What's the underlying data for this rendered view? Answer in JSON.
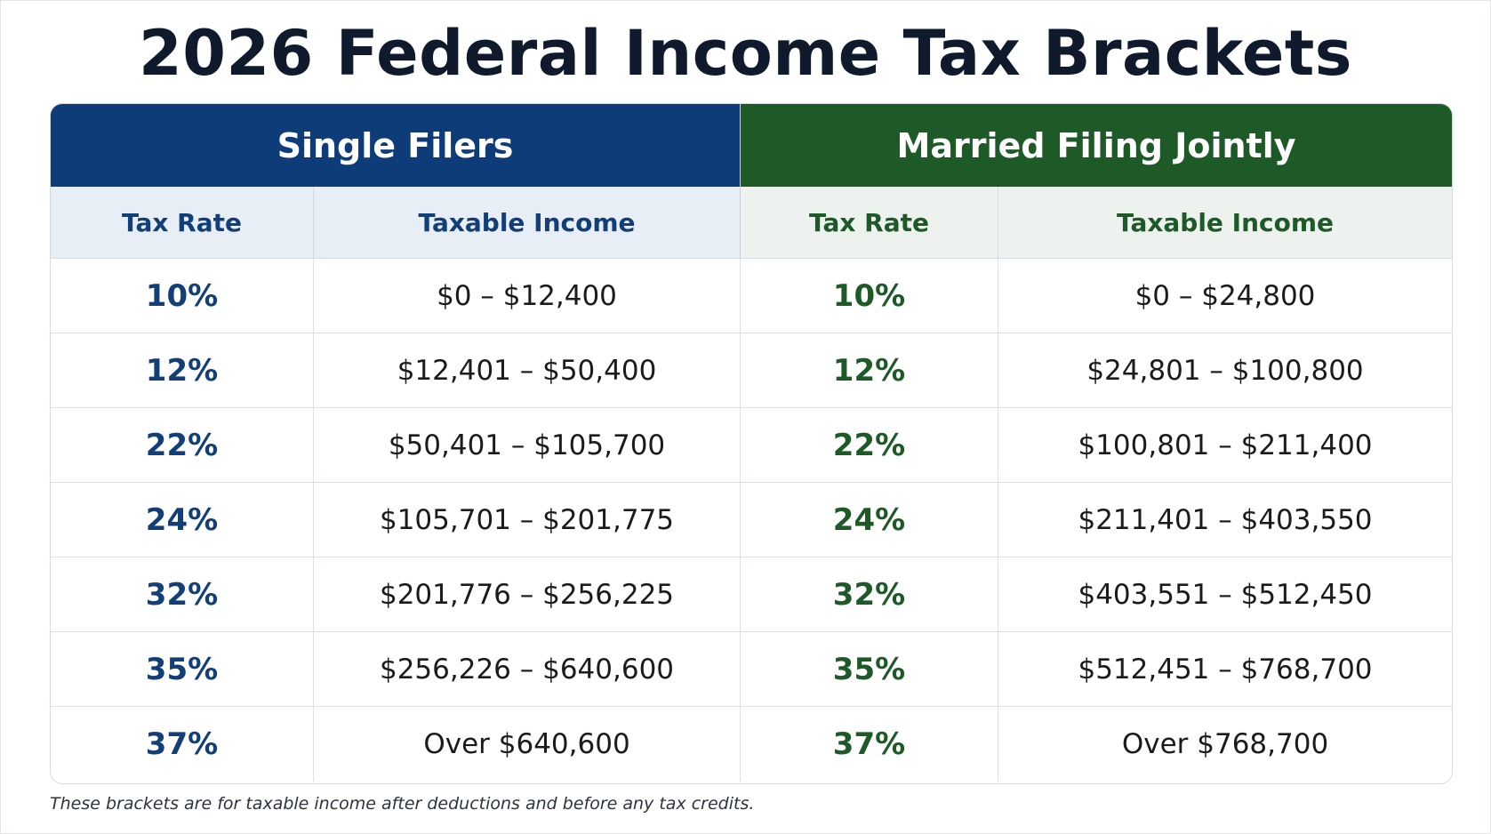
{
  "title": "2026 Federal Income Tax Brackets",
  "groups": {
    "single": "Single Filers",
    "married": "Married Filing Jointly"
  },
  "column_headers": {
    "tax_rate": "Tax Rate",
    "taxable_income": "Taxable Income"
  },
  "rows": [
    {
      "single_rate": "10%",
      "single_income": "$0 – $12,400",
      "married_rate": "10%",
      "married_income": "$0 – $24,800"
    },
    {
      "single_rate": "12%",
      "single_income": "$12,401 – $50,400",
      "married_rate": "12%",
      "married_income": "$24,801 – $100,800"
    },
    {
      "single_rate": "22%",
      "single_income": "$50,401 – $105,700",
      "married_rate": "22%",
      "married_income": "$100,801 – $211,400"
    },
    {
      "single_rate": "24%",
      "single_income": "$105,701 – $201,775",
      "married_rate": "24%",
      "married_income": "$211,401 – $403,550"
    },
    {
      "single_rate": "32%",
      "single_income": "$201,776 – $256,225",
      "married_rate": "32%",
      "married_income": "$403,551 – $512,450"
    },
    {
      "single_rate": "35%",
      "single_income": "$256,226 – $640,600",
      "married_rate": "35%",
      "married_income": "$512,451 – $768,700"
    },
    {
      "single_rate": "37%",
      "single_income": "Over $640,600",
      "married_rate": "37%",
      "married_income": "Over $768,700"
    }
  ],
  "footnote": "These brackets are for taxable income after deductions and before any tax credits.",
  "colors": {
    "single_accent": "#0d3c78",
    "married_accent": "#1d5a27",
    "title_text": "#0f1b2d"
  }
}
